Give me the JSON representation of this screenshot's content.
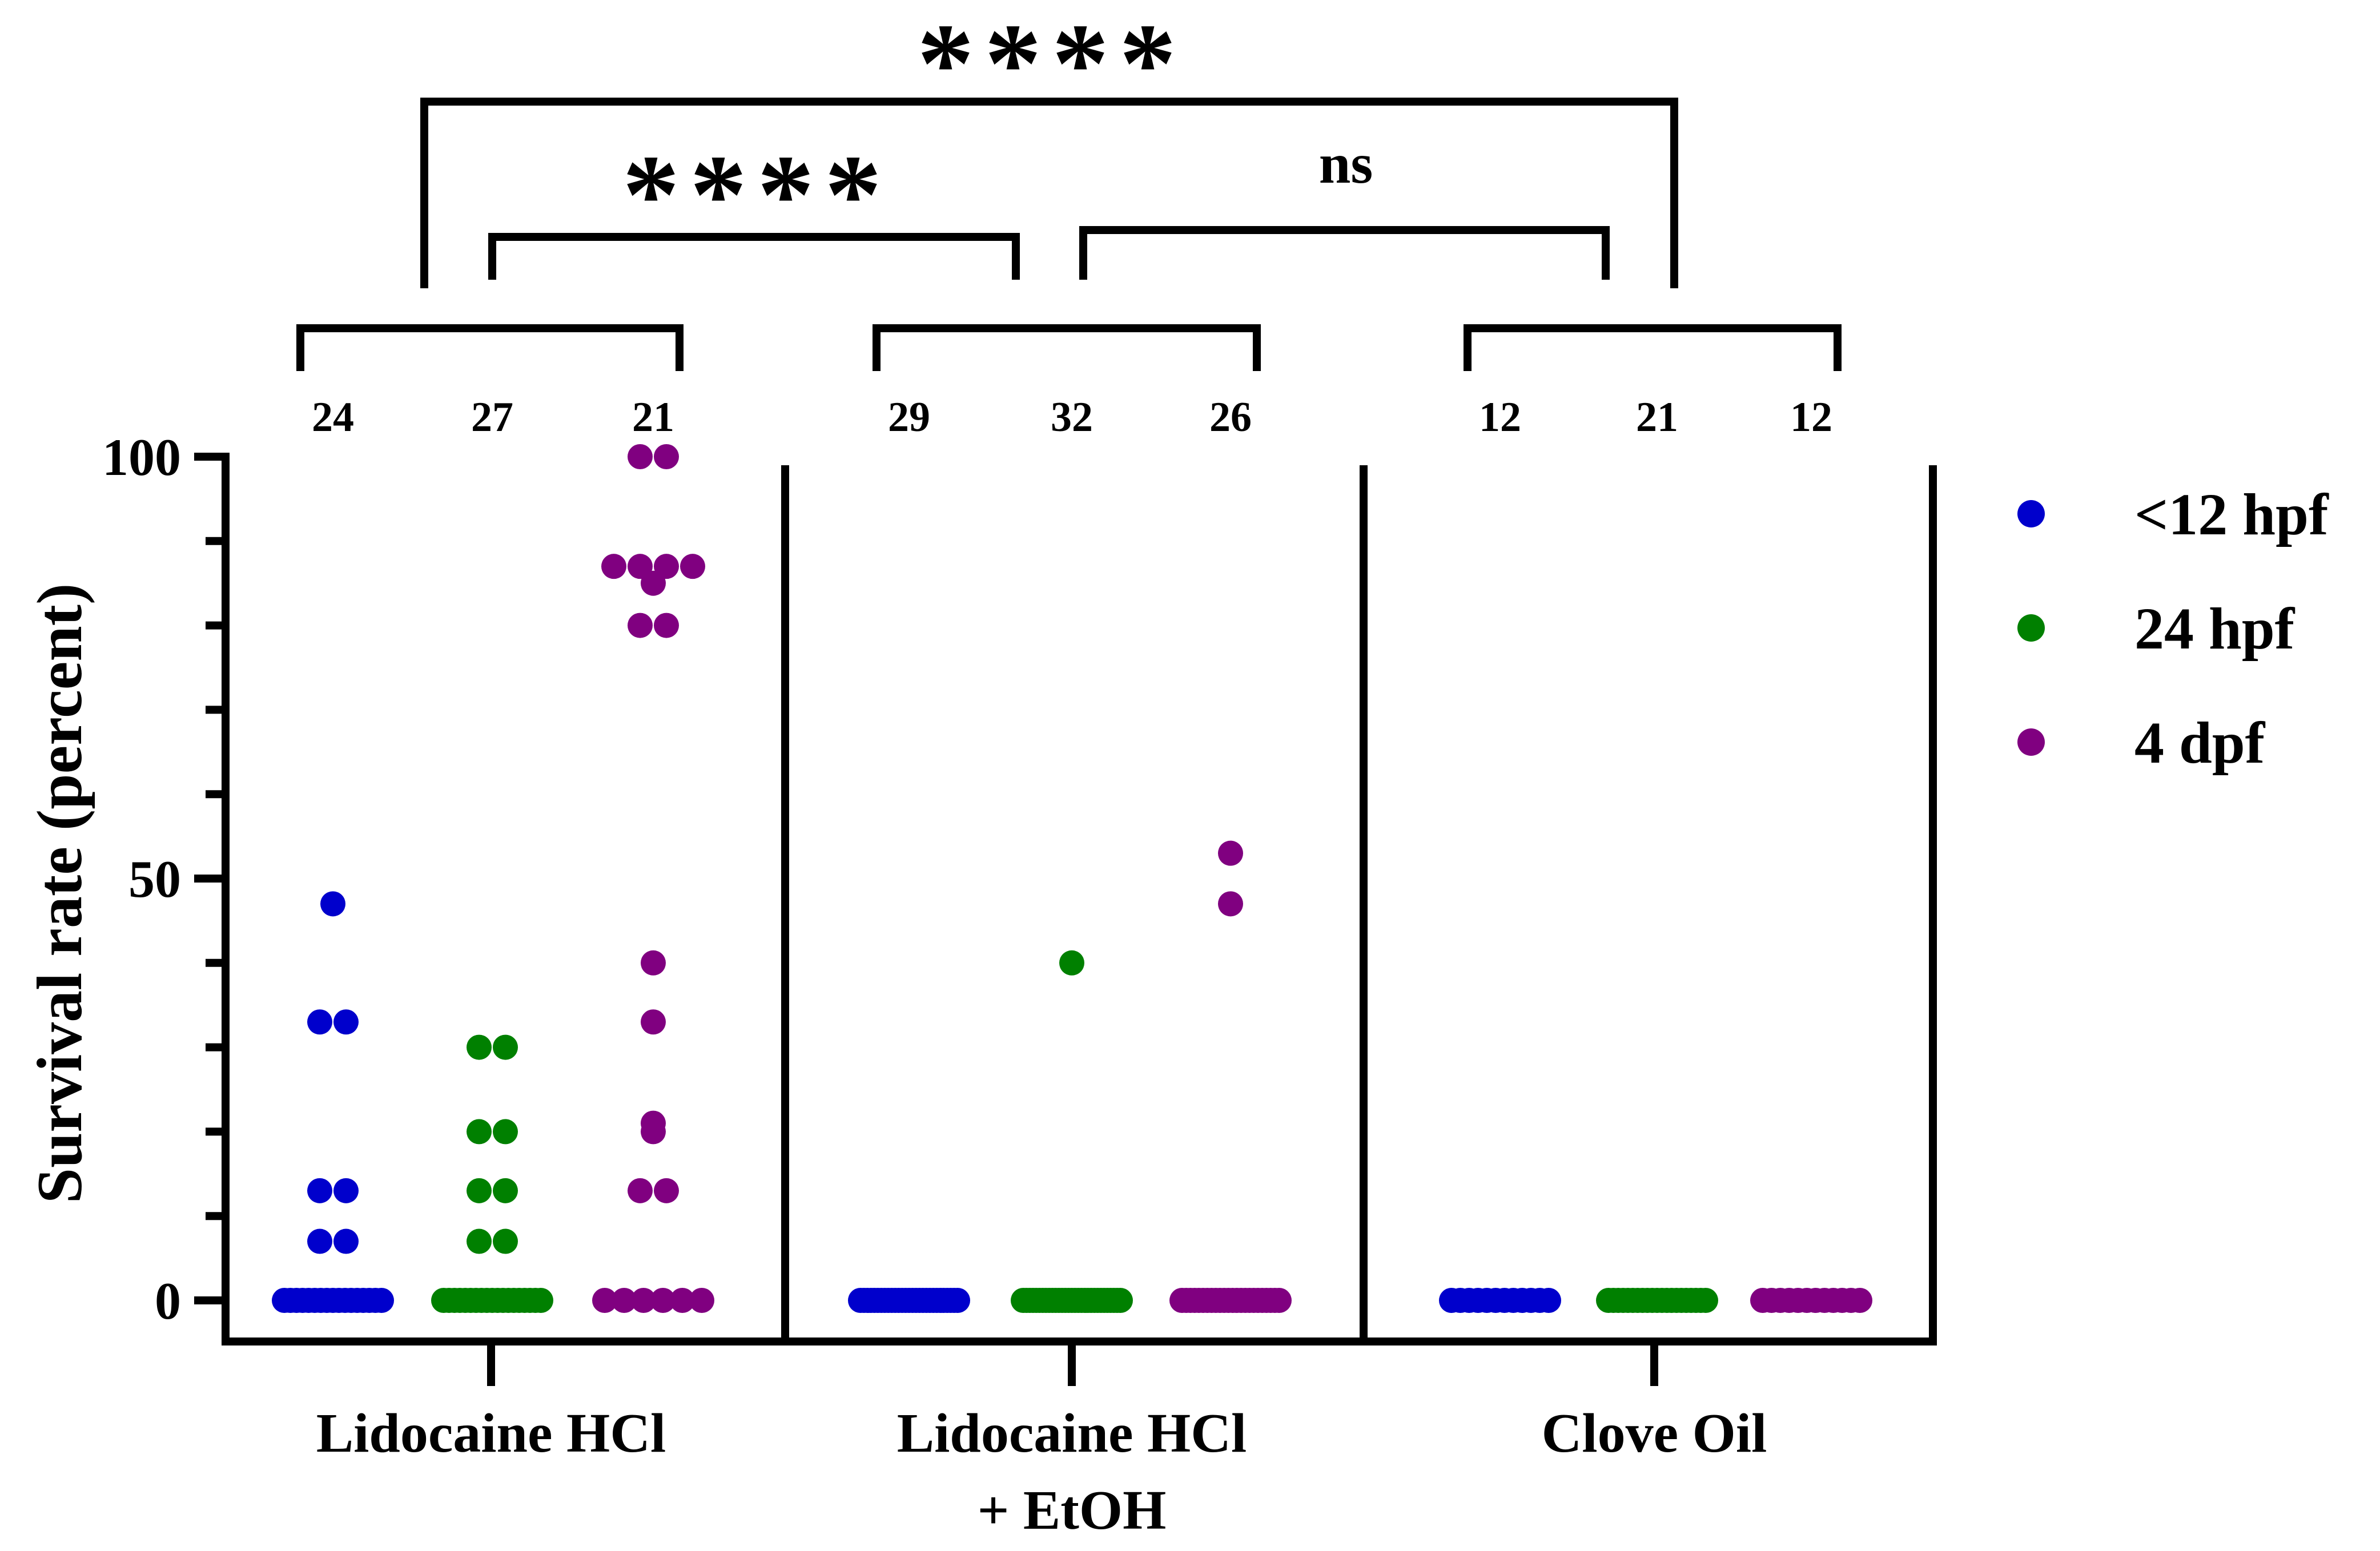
{
  "chart_data": {
    "type": "scatter",
    "title": "",
    "ylabel": "Survival rate (percent)",
    "xlabel": "",
    "ylim": [
      0,
      100
    ],
    "yticks": [
      0,
      50,
      100
    ],
    "groups": [
      {
        "label_lines": [
          "Lidocaine HCl"
        ]
      },
      {
        "label_lines": [
          "Lidocaine HCl",
          "+ EtOH"
        ]
      },
      {
        "label_lines": [
          "Clove Oil"
        ]
      }
    ],
    "series": [
      {
        "name": "<12 hpf",
        "color": "#0000CC"
      },
      {
        "name": "24 hpf",
        "color": "#008000"
      },
      {
        "name": "4 dpf",
        "color": "#800080"
      }
    ],
    "points": [
      {
        "group": 0,
        "series": 0,
        "n": "24",
        "values": [
          47,
          33,
          33,
          13,
          13,
          7,
          7,
          0,
          0,
          0,
          0,
          0,
          0,
          0,
          0,
          0,
          0,
          0,
          0,
          0,
          0,
          0,
          0,
          0
        ]
      },
      {
        "group": 0,
        "series": 1,
        "n": "27",
        "values": [
          30,
          30,
          20,
          20,
          13,
          13,
          7,
          7,
          0,
          0,
          0,
          0,
          0,
          0,
          0,
          0,
          0,
          0,
          0,
          0,
          0,
          0,
          0,
          0,
          0,
          0,
          0
        ]
      },
      {
        "group": 0,
        "series": 2,
        "n": "21",
        "values": [
          100,
          100,
          87,
          87,
          87,
          87,
          85,
          80,
          80,
          40,
          33,
          21,
          20,
          13,
          13,
          0,
          0,
          0,
          0,
          0,
          0
        ]
      },
      {
        "group": 1,
        "series": 0,
        "n": "29",
        "values": [
          0,
          0,
          0,
          0,
          0,
          0,
          0,
          0,
          0,
          0,
          0,
          0,
          0,
          0,
          0,
          0,
          0,
          0,
          0,
          0,
          0,
          0,
          0,
          0,
          0,
          0,
          0,
          0,
          0
        ]
      },
      {
        "group": 1,
        "series": 1,
        "n": "32",
        "values": [
          40,
          0,
          0,
          0,
          0,
          0,
          0,
          0,
          0,
          0,
          0,
          0,
          0,
          0,
          0,
          0,
          0,
          0,
          0,
          0,
          0,
          0,
          0,
          0,
          0,
          0,
          0,
          0,
          0,
          0,
          0,
          0
        ]
      },
      {
        "group": 1,
        "series": 2,
        "n": "26",
        "values": [
          53,
          47,
          0,
          0,
          0,
          0,
          0,
          0,
          0,
          0,
          0,
          0,
          0,
          0,
          0,
          0,
          0,
          0,
          0,
          0,
          0,
          0,
          0,
          0,
          0,
          0
        ]
      },
      {
        "group": 2,
        "series": 0,
        "n": "12",
        "values": [
          0,
          0,
          0,
          0,
          0,
          0,
          0,
          0,
          0,
          0,
          0,
          0
        ]
      },
      {
        "group": 2,
        "series": 1,
        "n": "21",
        "values": [
          0,
          0,
          0,
          0,
          0,
          0,
          0,
          0,
          0,
          0,
          0,
          0,
          0,
          0,
          0,
          0,
          0,
          0,
          0,
          0,
          0
        ]
      },
      {
        "group": 2,
        "series": 2,
        "n": "12",
        "values": [
          0,
          0,
          0,
          0,
          0,
          0,
          0,
          0,
          0,
          0,
          0,
          0
        ]
      }
    ],
    "legend": {
      "position": "right"
    },
    "significance": [
      {
        "label": "****",
        "from": "Lidocaine HCl",
        "to": "Clove Oil"
      },
      {
        "label": "****",
        "from": "Lidocaine HCl",
        "to": "Lidocaine HCl + EtOH"
      },
      {
        "label": "ns",
        "from": "Lidocaine HCl + EtOH",
        "to": "Clove Oil"
      }
    ]
  }
}
